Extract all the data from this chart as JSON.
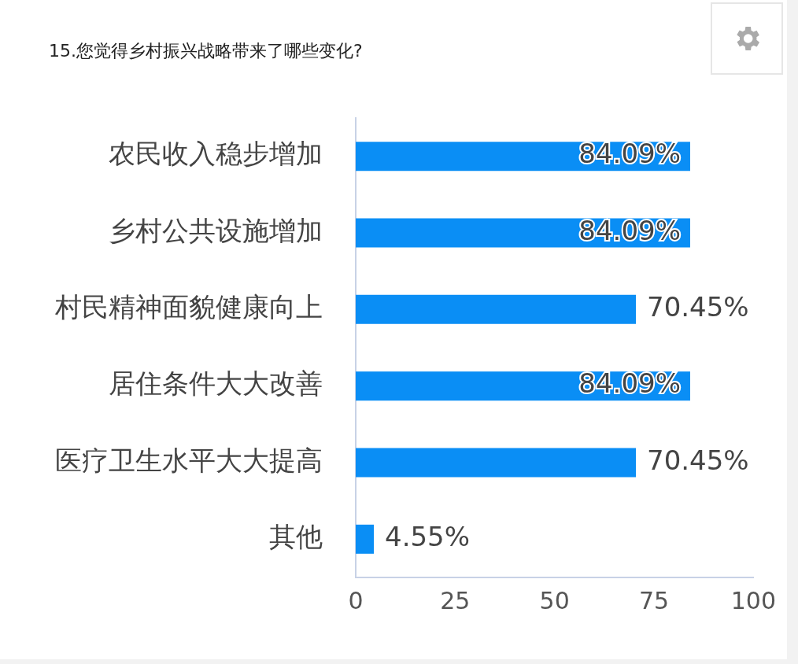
{
  "chart_data": {
    "type": "bar",
    "orientation": "horizontal",
    "title": "15.您觉得乡村振兴战略带来了哪些变化?",
    "categories": [
      "农民收入稳步增加",
      "乡村公共设施增加",
      "村民精神面貌健康向上",
      "居住条件大大改善",
      "医疗卫生水平大大提高",
      "其他"
    ],
    "values": [
      84.09,
      84.09,
      70.45,
      84.09,
      70.45,
      4.55
    ],
    "value_labels": [
      "84.09%",
      "84.09%",
      "70.45%",
      "84.09%",
      "70.45%",
      "4.55%"
    ],
    "color": "#0a8ef5",
    "xlim": [
      0,
      100
    ],
    "xticks": [
      0,
      25,
      50,
      75,
      100
    ],
    "grid": false,
    "legend": false
  }
}
